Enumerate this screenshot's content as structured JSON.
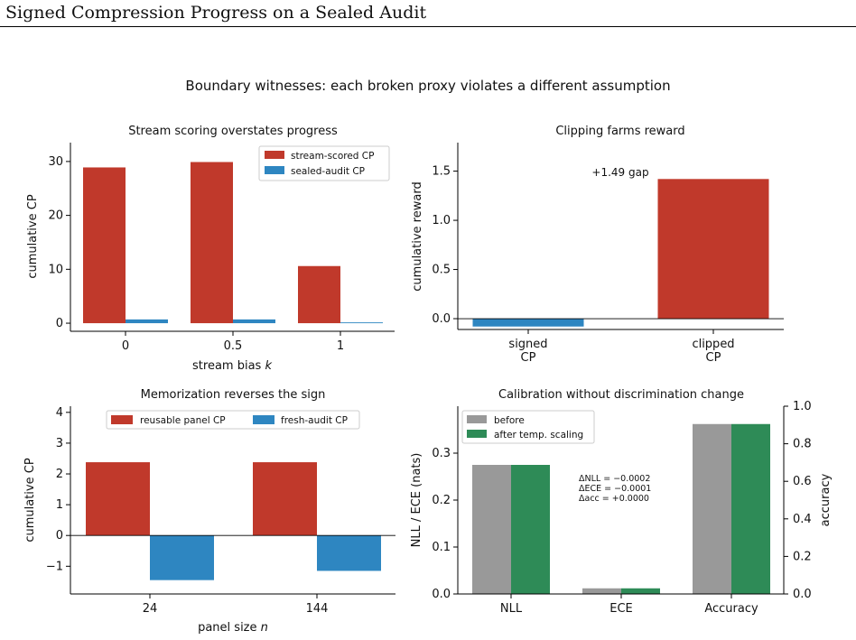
{
  "page": {
    "title": "Signed Compression Progress on a Sealed Audit"
  },
  "figure": {
    "suptitle": "Boundary witnesses: each broken proxy violates a different assumption"
  },
  "chart_data": [
    {
      "id": "a",
      "type": "bar",
      "title": "Stream scoring overstates progress",
      "xlabel": "stream bias ",
      "xlabel_var": "k",
      "ylabel": "cumulative CP",
      "categories": [
        "0",
        "0.5",
        "1"
      ],
      "series": [
        {
          "name": "stream-scored CP",
          "values": [
            28.9,
            29.9,
            10.6
          ],
          "color": "#c0392b"
        },
        {
          "name": "sealed-audit CP",
          "values": [
            0.7,
            0.7,
            0.15
          ],
          "color": "#2e86c1"
        }
      ],
      "ylim": [
        -1.5,
        33.5
      ],
      "yticks": [
        "0",
        "10",
        "20",
        "30"
      ],
      "legend": "top-right"
    },
    {
      "id": "b",
      "type": "bar",
      "title": "Clipping farms reward",
      "ylabel": "cumulative reward",
      "categories": [
        "signed\nCP",
        "clipped\nCP"
      ],
      "values": [
        -0.08,
        1.42
      ],
      "colors": [
        "#2e86c1",
        "#c0392b"
      ],
      "annotation": "+1.49 gap",
      "ylim": [
        -0.11,
        1.79
      ],
      "yticks": [
        "0.0",
        "0.5",
        "1.0",
        "1.5"
      ],
      "zero_line": true
    },
    {
      "id": "c",
      "type": "bar",
      "title": "Memorization reverses the sign",
      "xlabel": "panel size ",
      "xlabel_var": "n",
      "ylabel": "cumulative CP",
      "categories": [
        "24",
        "144"
      ],
      "series": [
        {
          "name": "reusable panel CP",
          "values": [
            2.38,
            2.38
          ],
          "color": "#c0392b"
        },
        {
          "name": "fresh-audit CP",
          "values": [
            -1.45,
            -1.15
          ],
          "color": "#2e86c1"
        }
      ],
      "ylim": [
        -1.9,
        4.2
      ],
      "yticks": [
        "−1",
        "0",
        "1",
        "2",
        "3",
        "4"
      ],
      "zero_line": true,
      "legend": "top-center"
    },
    {
      "id": "d",
      "type": "bar",
      "title": "Calibration without discrimination change",
      "ylabel": "NLL / ECE (nats)",
      "ylabel_right": "accuracy",
      "categories": [
        "NLL",
        "ECE",
        "Accuracy"
      ],
      "series": [
        {
          "name": "before",
          "values": [
            0.275,
            0.012,
            0.362
          ],
          "color": "#999999"
        },
        {
          "name": "after temp. scaling",
          "values": [
            0.275,
            0.012,
            0.362
          ],
          "color": "#2e8b57"
        }
      ],
      "ylim": [
        0,
        0.4
      ],
      "yticks": [
        "0.0",
        "0.1",
        "0.2",
        "0.3"
      ],
      "y2ticks": [
        "0.0",
        "0.2",
        "0.4",
        "0.6",
        "0.8",
        "1.0"
      ],
      "annotations": [
        "ΔNLL = −0.0002",
        "ΔECE = −0.0001",
        "Δacc = +0.0000"
      ],
      "legend": "top-left"
    }
  ]
}
